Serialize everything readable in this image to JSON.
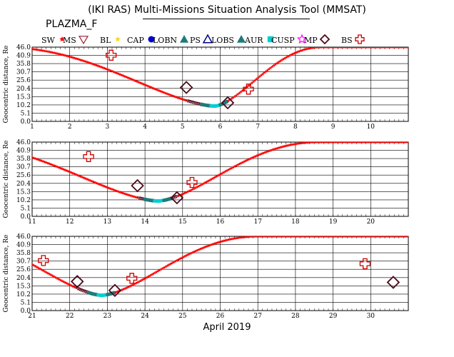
{
  "title": "(IKI RAS) Multi-Missions Situation Analysis Tool (MMSAT)",
  "mission": "PLAZMA_F",
  "legend": [
    {
      "label": "SW",
      "symbol": "star",
      "color": "#ff0000"
    },
    {
      "label": "MS",
      "symbol": "triangle-down",
      "color": "#9b1b30"
    },
    {
      "label": "BL",
      "symbol": "star",
      "color": "#ffd700"
    },
    {
      "label": "CAP",
      "symbol": "circle",
      "color": "#0000cc"
    },
    {
      "label": "LOBN",
      "symbol": "triangle",
      "color": "#1f7a7a"
    },
    {
      "label": "PS",
      "symbol": "triangle-open",
      "color": "#00008b"
    },
    {
      "label": "LOBS",
      "symbol": "triangle",
      "color": "#1f7a7a"
    },
    {
      "label": "AUR",
      "symbol": "square",
      "color": "#00ced1"
    },
    {
      "label": "CUSP",
      "symbol": "star-open",
      "color": "#ff00ff"
    },
    {
      "label": "MP",
      "symbol": "diamond-open",
      "color": "#4b0a1a"
    },
    {
      "label": "BS",
      "symbol": "cross-open",
      "color": "#cc0000"
    }
  ],
  "chart_data": [
    {
      "type": "scatter",
      "ylabel": "Geocentric distance, Re",
      "xlim": [
        1,
        11
      ],
      "ylim": [
        0,
        46
      ],
      "yticks": [
        "0.0",
        "5.1",
        "10.2",
        "15.3",
        "20.4",
        "25.6",
        "30.7",
        "35.8",
        "40.9",
        "46.0"
      ],
      "xticks": [
        "1",
        "2",
        "3",
        "4",
        "5",
        "6",
        "7",
        "8",
        "9",
        "10"
      ],
      "apogee": [
        [
          0.2,
          46.0
        ],
        [
          8.7,
          46.0
        ]
      ],
      "perigee": [
        5.85,
        9.5
      ],
      "crossings": [
        {
          "type": "BS",
          "x": 3.1,
          "y": 41.0
        },
        {
          "type": "MP",
          "x": 5.1,
          "y": 21.0
        },
        {
          "type": "MP",
          "x": 6.2,
          "y": 11.5
        },
        {
          "type": "BS",
          "x": 6.75,
          "y": 20.0
        }
      ]
    },
    {
      "type": "scatter",
      "ylabel": "Geocentric distance, Re",
      "xlim": [
        11,
        21
      ],
      "ylim": [
        0,
        46
      ],
      "yticks": [
        "0.0",
        "5.1",
        "10.2",
        "15.3",
        "20.4",
        "25.6",
        "30.7",
        "35.8",
        "40.9",
        "46.0"
      ],
      "xticks": [
        "11",
        "12",
        "13",
        "14",
        "15",
        "16",
        "17",
        "18",
        "19",
        "20"
      ],
      "apogee": [
        [
          8.7,
          46.0
        ],
        [
          18.6,
          46.0
        ]
      ],
      "perigee": [
        14.35,
        9.5
      ],
      "crossings": [
        {
          "type": "BS",
          "x": 12.5,
          "y": 37.0
        },
        {
          "type": "MP",
          "x": 13.8,
          "y": 19.0
        },
        {
          "type": "MP",
          "x": 14.85,
          "y": 11.5
        },
        {
          "type": "BS",
          "x": 15.25,
          "y": 21.0
        }
      ]
    },
    {
      "type": "scatter",
      "ylabel": "Geocentric distance, Re",
      "xlim": [
        21,
        31
      ],
      "ylim": [
        0,
        46
      ],
      "yticks": [
        "0.0",
        "5.1",
        "10.2",
        "15.3",
        "20.4",
        "25.6",
        "30.7",
        "35.8",
        "40.9",
        "46.0"
      ],
      "xticks": [
        "21",
        "22",
        "23",
        "24",
        "25",
        "26",
        "27",
        "28",
        "29",
        "30"
      ],
      "xlabel": "April 2019",
      "apogee": [
        [
          18.6,
          46.0
        ],
        [
          27.0,
          46.0
        ]
      ],
      "perigee": [
        22.85,
        9.5
      ],
      "crossings": [
        {
          "type": "BS",
          "x": 21.3,
          "y": 31.0
        },
        {
          "type": "MP",
          "x": 22.2,
          "y": 18.0
        },
        {
          "type": "MP",
          "x": 23.2,
          "y": 12.5
        },
        {
          "type": "BS",
          "x": 23.65,
          "y": 20.0
        },
        {
          "type": "BS",
          "x": 29.85,
          "y": 29.0
        },
        {
          "type": "MP",
          "x": 30.6,
          "y": 17.5
        }
      ]
    }
  ]
}
